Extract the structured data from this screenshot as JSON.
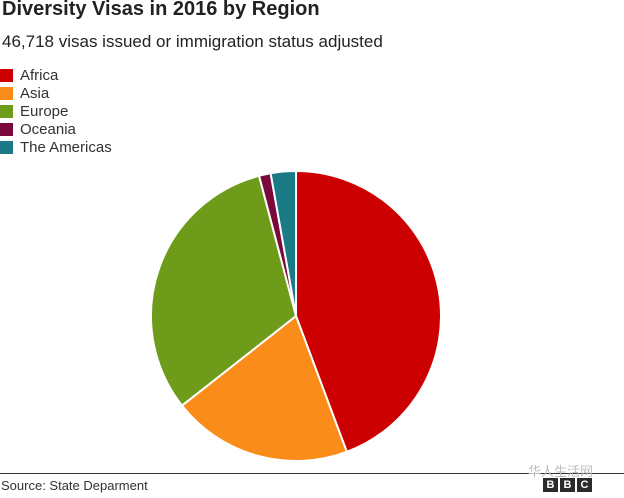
{
  "header": {
    "title": "Diversity Visas in 2016 by Region",
    "subtitle": "46,718 visas issued or immigration status adjusted"
  },
  "footer": {
    "source": "Source: State Deparment",
    "watermark": "华人生活网",
    "brand": [
      "B",
      "B",
      "C"
    ]
  },
  "chart_data": {
    "type": "pie",
    "title": "Diversity Visas in 2016 by Region",
    "subtitle": "46,718 visas issued or immigration status adjusted",
    "legend_position": "top-left",
    "start_angle_deg": 0,
    "direction": "clockwise",
    "slices": [
      {
        "label": "Africa",
        "value": 44.3,
        "color": "#cc0000"
      },
      {
        "label": "Asia",
        "value": 20.1,
        "color": "#fa8c1a"
      },
      {
        "label": "Europe",
        "value": 31.5,
        "color": "#6e9c1a"
      },
      {
        "label": "Oceania",
        "value": 1.3,
        "color": "#7a0a3c"
      },
      {
        "label": "The Americas",
        "value": 2.8,
        "color": "#1a7a86"
      }
    ]
  }
}
